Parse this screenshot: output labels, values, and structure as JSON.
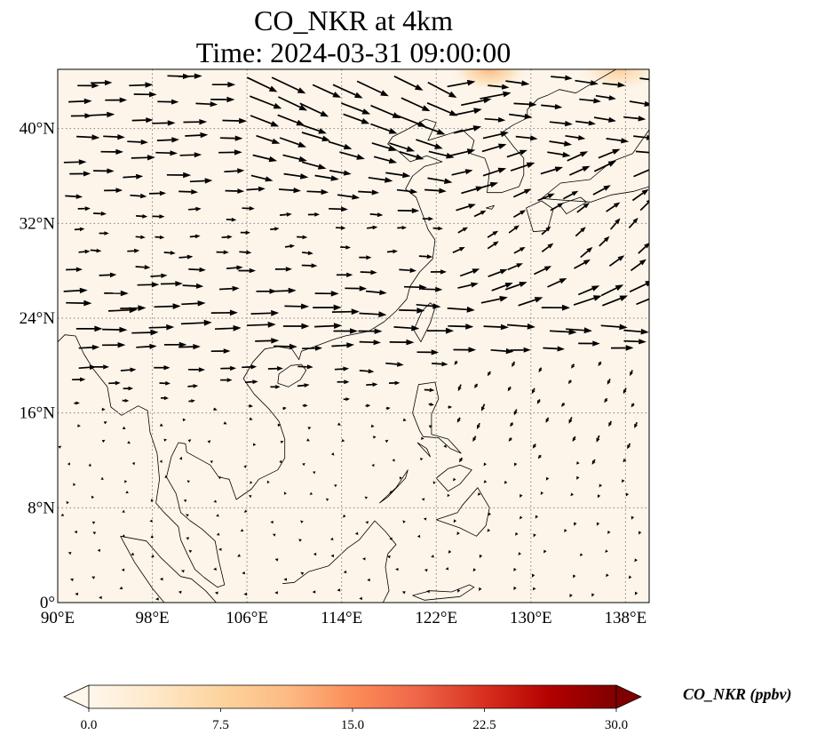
{
  "figure": {
    "title_line1": "CO_NKR at 4km",
    "title_line2": "Time: 2024-03-31 09:00:00"
  },
  "map_extent": {
    "lon": [
      90,
      140
    ],
    "lat": [
      0,
      45
    ]
  },
  "axes": {
    "x_ticks": [
      {
        "value": 90,
        "label": "90°E"
      },
      {
        "value": 98,
        "label": "98°E"
      },
      {
        "value": 106,
        "label": "106°E"
      },
      {
        "value": 114,
        "label": "114°E"
      },
      {
        "value": 122,
        "label": "122°E"
      },
      {
        "value": 130,
        "label": "130°E"
      },
      {
        "value": 138,
        "label": "138°E"
      }
    ],
    "y_ticks": [
      {
        "value": 0,
        "label": "0°"
      },
      {
        "value": 8,
        "label": "8°N"
      },
      {
        "value": 16,
        "label": "16°N"
      },
      {
        "value": 24,
        "label": "24°N"
      },
      {
        "value": 32,
        "label": "32°N"
      },
      {
        "value": 40,
        "label": "40°N"
      }
    ],
    "gridlines": true
  },
  "colorbar": {
    "label": "CO_NKR (ppbv)",
    "range": [
      0,
      30
    ],
    "ticks": [
      {
        "value": 0,
        "label": "0.0"
      },
      {
        "value": 7.5,
        "label": "7.5"
      },
      {
        "value": 15,
        "label": "15.0"
      },
      {
        "value": 22.5,
        "label": "22.5"
      },
      {
        "value": 30,
        "label": "30.0"
      }
    ],
    "colormap": "OrRd",
    "colors": [
      "#fff7ec",
      "#fee8c8",
      "#fdd49e",
      "#fdbb84",
      "#fc8d59",
      "#ef6548",
      "#d7301f",
      "#b30000",
      "#7f0000"
    ],
    "extend": "both"
  },
  "field": {
    "background_color": "#fdf5ea",
    "hotspots": [
      {
        "lon": 126.5,
        "lat": 45.0,
        "value": 12
      },
      {
        "lon": 137.5,
        "lat": 45.0,
        "value": 9
      }
    ]
  },
  "wind_arrows": {
    "color": "#000000"
  }
}
